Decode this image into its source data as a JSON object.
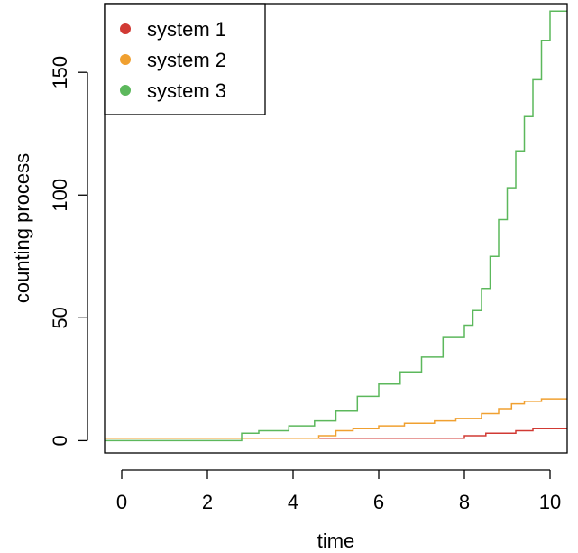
{
  "chart_data": {
    "type": "line",
    "step": true,
    "xlabel": "time",
    "ylabel": "counting process",
    "xlim": [
      -0.4,
      10.4
    ],
    "ylim": [
      -5,
      178
    ],
    "x_ticks": [
      0,
      2,
      4,
      6,
      8,
      10
    ],
    "x_tick_labels": [
      "0",
      "2",
      "4",
      "6",
      "8",
      "10"
    ],
    "y_ticks": [
      0,
      50,
      100,
      150
    ],
    "y_tick_labels": [
      "0",
      "50",
      "100",
      "150"
    ],
    "grid": false,
    "legend_position": "top-left",
    "series": [
      {
        "name": "system 1",
        "color": "#d13a34",
        "x": [
          -0.4,
          8.0,
          8.5,
          9.2,
          9.6,
          10.4
        ],
        "y": [
          1,
          2,
          3,
          4,
          5,
          5
        ]
      },
      {
        "name": "system 2",
        "color": "#f0a030",
        "x": [
          -0.4,
          4.6,
          5.0,
          5.4,
          6.0,
          6.6,
          7.3,
          7.8,
          8.4,
          8.8,
          9.1,
          9.4,
          9.8,
          10.4
        ],
        "y": [
          1,
          2,
          4,
          5,
          6,
          7,
          8,
          9,
          11,
          13,
          15,
          16,
          17,
          17
        ]
      },
      {
        "name": "system 3",
        "color": "#5cb85c",
        "x": [
          -0.4,
          2.8,
          3.2,
          3.9,
          4.5,
          5.0,
          5.5,
          6.0,
          6.5,
          7.0,
          7.5,
          8.0,
          8.2,
          8.4,
          8.6,
          8.8,
          9.0,
          9.2,
          9.4,
          9.6,
          9.8,
          10.0,
          10.4
        ],
        "y": [
          0,
          3,
          4,
          6,
          8,
          12,
          18,
          23,
          28,
          34,
          42,
          47,
          53,
          62,
          75,
          90,
          103,
          118,
          132,
          147,
          163,
          175,
          175
        ]
      }
    ]
  }
}
